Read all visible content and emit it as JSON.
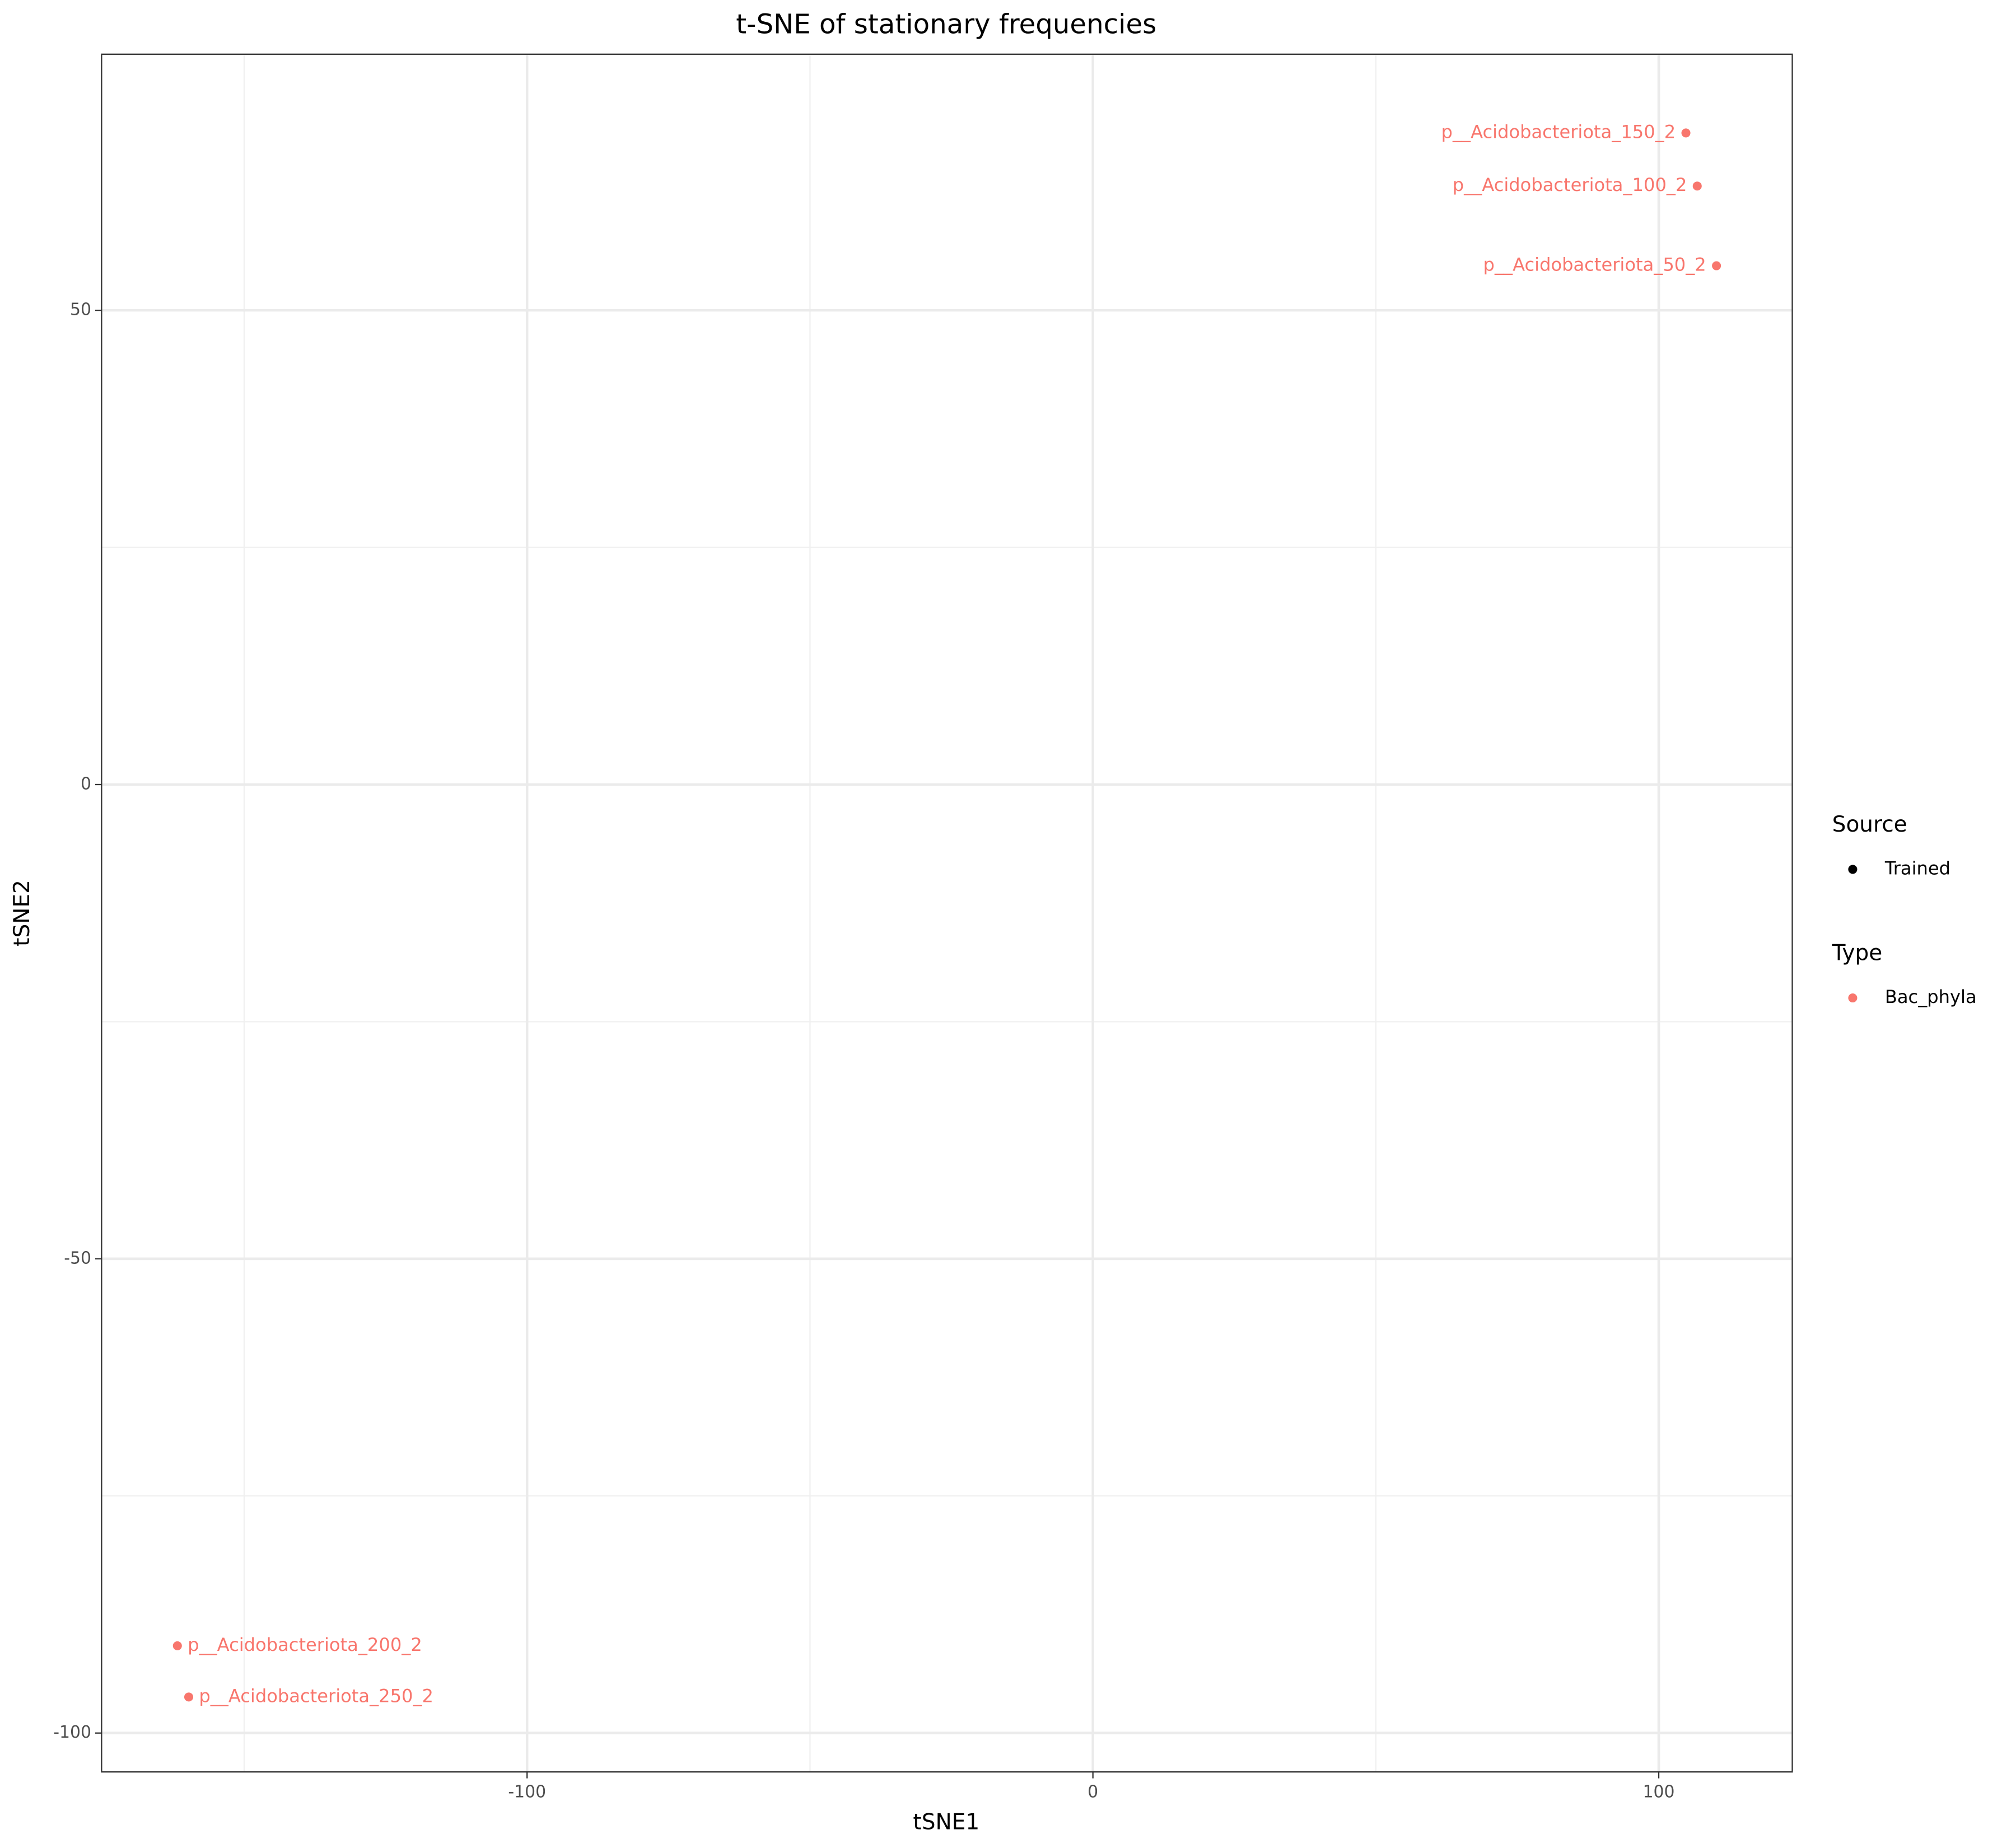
{
  "chart_data": {
    "type": "scatter",
    "title": "t-SNE of stationary frequencies",
    "x_label": "tSNE1",
    "y_label": "tSNE2",
    "xlim": [
      -175.2,
      123.6
    ],
    "ylim": [
      -104.1,
      77.0
    ],
    "xticks": [
      -100,
      0,
      100
    ],
    "yticks": [
      -100,
      -50,
      0,
      50
    ],
    "x_minor_grid": [
      -150,
      -50,
      50
    ],
    "y_minor_grid": [
      -75,
      -25,
      25
    ],
    "grid": true,
    "series": [
      {
        "name": "Bac_phyla",
        "color": "#f8766d",
        "labels": [
          "p__Acidobacteriota_150_2",
          "p__Acidobacteriota_100_2",
          "p__Acidobacteriota_50_2",
          "p__Acidobacteriota_200_2",
          "p__Acidobacteriota_250_2"
        ],
        "x": [
          104.8,
          106.8,
          110.2,
          -161.8,
          -159.8
        ],
        "values": [
          68.7,
          63.1,
          54.7,
          -90.8,
          -96.2
        ]
      }
    ],
    "legends": [
      {
        "title": "Source",
        "items": [
          {
            "label": "Trained",
            "color": "#000000"
          }
        ]
      },
      {
        "title": "Type",
        "items": [
          {
            "label": "Bac_phyla",
            "color": "#f8766d"
          }
        ]
      }
    ],
    "legend_position": "right"
  }
}
